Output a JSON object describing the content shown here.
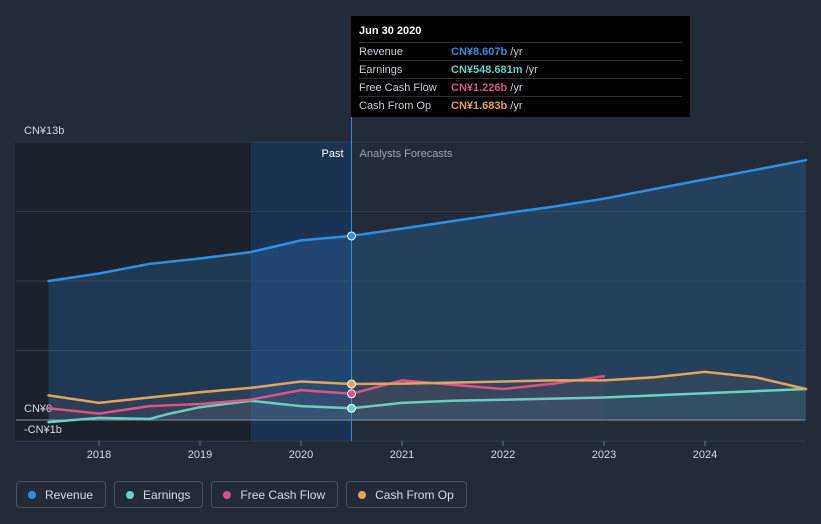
{
  "colors": {
    "background": "#232b38",
    "revenue": "#2e8fe0",
    "earnings": "#5fd6c8",
    "free_cash_flow": "#d9528a",
    "cash_from_op": "#e5a35a"
  },
  "tooltip": {
    "date": "Jun 30 2020",
    "rows": [
      {
        "label": "Revenue",
        "value": "CN¥8.607b",
        "unit": "/yr",
        "color": "#2e8fe0"
      },
      {
        "label": "Earnings",
        "value": "CN¥548.681m",
        "unit": "/yr",
        "color": "#5fd6c8"
      },
      {
        "label": "Free Cash Flow",
        "value": "CN¥1.226b",
        "unit": "/yr",
        "color": "#d9528a"
      },
      {
        "label": "Cash From Op",
        "value": "CN¥1.683b",
        "unit": "/yr",
        "color": "#e5a35a"
      }
    ]
  },
  "chart_data": {
    "type": "area",
    "y_unit_labels": {
      "top": "CN¥13b",
      "zero": "CN¥0",
      "bottom": "-CN¥1b"
    },
    "ylim": [
      -1,
      13
    ],
    "xlim": [
      2017.5,
      2025.0
    ],
    "x_ticks": [
      "2018",
      "2019",
      "2020",
      "2021",
      "2022",
      "2023",
      "2024"
    ],
    "past_label": "Past",
    "forecast_label": "Analysts Forecasts",
    "divider_x": 2020.5,
    "highlight_range": [
      2019.5,
      2020.5
    ],
    "grid": true,
    "series": [
      {
        "name": "Revenue",
        "key": "revenue",
        "x": [
          2017.5,
          2018.0,
          2018.5,
          2019.0,
          2019.5,
          2020.0,
          2020.5,
          2021.0,
          2021.5,
          2022.0,
          2022.5,
          2023.0,
          2023.5,
          2024.0,
          2024.5,
          2025.0
        ],
        "y": [
          6.5,
          6.85,
          7.3,
          7.55,
          7.85,
          8.4,
          8.607,
          8.95,
          9.3,
          9.65,
          9.98,
          10.35,
          10.8,
          11.25,
          11.7,
          12.15
        ]
      },
      {
        "name": "Earnings",
        "key": "earnings",
        "x": [
          2017.5,
          2018.0,
          2018.5,
          2018.7,
          2019.0,
          2019.5,
          2020.0,
          2020.5,
          2021.0,
          2021.5,
          2022.0,
          2022.5,
          2023.0,
          2023.5,
          2024.0,
          2024.5,
          2025.0
        ],
        "y": [
          -0.1,
          0.1,
          0.05,
          0.3,
          0.6,
          0.9,
          0.65,
          0.549,
          0.8,
          0.9,
          0.95,
          1.0,
          1.05,
          1.15,
          1.25,
          1.35,
          1.45
        ]
      },
      {
        "name": "Free Cash Flow",
        "key": "free_cash_flow",
        "x": [
          2017.5,
          2018.0,
          2018.5,
          2019.0,
          2019.5,
          2020.0,
          2020.5,
          2021.0,
          2021.5,
          2022.0,
          2022.5,
          2023.0
        ],
        "y": [
          0.55,
          0.3,
          0.65,
          0.75,
          0.95,
          1.4,
          1.226,
          1.85,
          1.65,
          1.45,
          1.7,
          2.05
        ]
      },
      {
        "name": "Cash From Op",
        "key": "cash_from_op",
        "x": [
          2017.5,
          2018.0,
          2018.5,
          2019.0,
          2019.5,
          2020.0,
          2020.5,
          2021.0,
          2021.5,
          2022.0,
          2022.5,
          2023.0,
          2023.5,
          2024.0,
          2024.5,
          2025.0
        ],
        "y": [
          1.15,
          0.8,
          1.05,
          1.3,
          1.5,
          1.8,
          1.683,
          1.7,
          1.75,
          1.8,
          1.85,
          1.85,
          2.0,
          2.25,
          2.0,
          1.45
        ]
      }
    ],
    "markers_at": 2020.5,
    "legend_placement": "bottom-left"
  },
  "legend": [
    {
      "label": "Revenue",
      "key": "revenue"
    },
    {
      "label": "Earnings",
      "key": "earnings"
    },
    {
      "label": "Free Cash Flow",
      "key": "free_cash_flow"
    },
    {
      "label": "Cash From Op",
      "key": "cash_from_op"
    }
  ]
}
